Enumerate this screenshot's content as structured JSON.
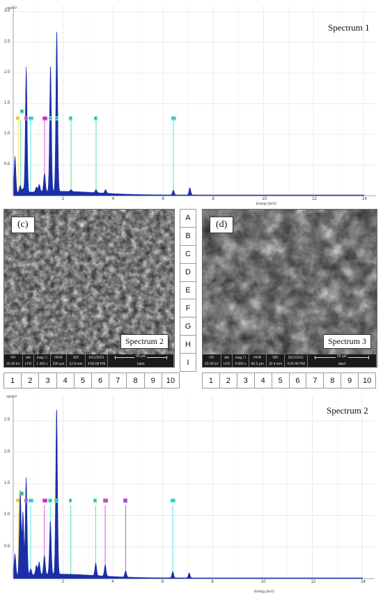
{
  "chart_data": [
    {
      "type": "line",
      "title": "Spectrum 1",
      "ylabel": "cps/eV",
      "xlabel": "Energy [keV]",
      "xlim": [
        0,
        14.5
      ],
      "ylim": [
        0,
        3.1
      ],
      "xticks": [
        2,
        4,
        6,
        8,
        10,
        12,
        14
      ],
      "yticks": [
        0.5,
        1.0,
        1.5,
        2.0,
        2.5,
        3.0
      ],
      "ytick_labels": [
        "0.5",
        "1.0",
        "1.5",
        "2.0",
        "2.5",
        "3.0"
      ],
      "grid": true,
      "peaks": [
        {
          "x": 0.07,
          "y": 0.6
        },
        {
          "x": 0.28,
          "y": 0.12
        },
        {
          "x": 0.39,
          "y": 0.06
        },
        {
          "x": 0.52,
          "y": 2.05
        },
        {
          "x": 0.93,
          "y": 0.08
        },
        {
          "x": 1.04,
          "y": 0.12
        },
        {
          "x": 1.25,
          "y": 0.3
        },
        {
          "x": 1.49,
          "y": 2.08
        },
        {
          "x": 1.74,
          "y": 2.65
        },
        {
          "x": 2.31,
          "y": 0.03
        },
        {
          "x": 3.31,
          "y": 0.05
        },
        {
          "x": 3.69,
          "y": 0.06
        },
        {
          "x": 6.4,
          "y": 0.08
        },
        {
          "x": 7.06,
          "y": 0.12
        }
      ],
      "labels": [
        {
          "text": "C",
          "x": 0.2,
          "color": "#f7e65a"
        },
        {
          "text": "N",
          "x": 0.3,
          "color": "#5ae0a8"
        },
        {
          "text": "O",
          "x": 0.52,
          "color": "#e85ae8"
        },
        {
          "text": "Fe",
          "x": 0.7,
          "color": "#5ae8e8"
        },
        {
          "text": "Mg",
          "x": 1.25,
          "color": "#e85ae8"
        },
        {
          "text": "Al",
          "x": 1.49,
          "color": "#5ae8e8"
        },
        {
          "text": "Si",
          "x": 1.74,
          "color": "#5ae8a0"
        },
        {
          "text": "S",
          "x": 2.31,
          "color": "#5ae8a0"
        },
        {
          "text": "K",
          "x": 3.31,
          "color": "#5ae8a0"
        },
        {
          "text": "Fe",
          "x": 6.4,
          "color": "#5ae8e8"
        }
      ]
    },
    {
      "type": "line",
      "title": "Spectrum 2",
      "ylabel": "cps/eV",
      "xlabel": "Energy [keV]",
      "xlim": [
        0,
        14.5
      ],
      "ylim": [
        0,
        2.9
      ],
      "xticks": [
        2,
        4,
        6,
        8,
        10,
        12,
        14
      ],
      "yticks": [
        0.5,
        1.0,
        1.5,
        2.0,
        2.5
      ],
      "ytick_labels": [
        "0.5",
        "1.0",
        "1.5",
        "2.0",
        "2.5"
      ],
      "grid": true,
      "peaks": [
        {
          "x": 0.07,
          "y": 0.35
        },
        {
          "x": 0.28,
          "y": 1.35
        },
        {
          "x": 0.39,
          "y": 1.0
        },
        {
          "x": 0.52,
          "y": 1.55
        },
        {
          "x": 0.7,
          "y": 0.1
        },
        {
          "x": 0.93,
          "y": 0.15
        },
        {
          "x": 1.04,
          "y": 0.2
        },
        {
          "x": 1.25,
          "y": 0.3
        },
        {
          "x": 1.49,
          "y": 0.85
        },
        {
          "x": 1.74,
          "y": 2.65
        },
        {
          "x": 3.31,
          "y": 0.2
        },
        {
          "x": 3.69,
          "y": 0.18
        },
        {
          "x": 4.51,
          "y": 0.1
        },
        {
          "x": 6.4,
          "y": 0.1
        },
        {
          "x": 7.06,
          "y": 0.08
        }
      ],
      "labels": [
        {
          "text": "C",
          "x": 0.2,
          "color": "#f7e65a"
        },
        {
          "text": "N",
          "x": 0.3,
          "color": "#5ae0a8"
        },
        {
          "text": "O",
          "x": 0.52,
          "color": "#e85ae8"
        },
        {
          "text": "Fe",
          "x": 0.7,
          "color": "#5ae8e8"
        },
        {
          "text": "Mg",
          "x": 1.25,
          "color": "#e85ae8"
        },
        {
          "text": "Al",
          "x": 1.49,
          "color": "#5ae8e8"
        },
        {
          "text": "Si",
          "x": 1.74,
          "color": "#5ae8a0"
        },
        {
          "text": "S",
          "x": 2.31,
          "color": "#5ae8a0"
        },
        {
          "text": "K",
          "x": 3.31,
          "color": "#5ae8a0"
        },
        {
          "text": "Ca",
          "x": 3.69,
          "color": "#e85ae8"
        },
        {
          "text": "Ti",
          "x": 4.51,
          "color": "#c05ae8"
        },
        {
          "text": "Fe",
          "x": 6.4,
          "color": "#5ae8e8"
        }
      ]
    }
  ],
  "panels": {
    "c": {
      "letter": "(c)",
      "spectrum_label": "Spectrum 2",
      "databar": {
        "cols": [
          {
            "head": "HV",
            "val": "20.00 kV"
          },
          {
            "head": "det",
            "val": "LFD"
          },
          {
            "head": "mag ☐",
            "val": "1 300 x"
          },
          {
            "head": "HFW",
            "val": "230 µm"
          },
          {
            "head": "WD",
            "val": "12.8 mm"
          },
          {
            "head": "9/21/2021",
            "val": "4:56:58 PM"
          }
        ],
        "scale": "50 µm",
        "label": "label"
      }
    },
    "d": {
      "letter": "(d)",
      "spectrum_label": "Spectrum 3",
      "databar": {
        "cols": [
          {
            "head": "HV",
            "val": "20.00 kV"
          },
          {
            "head": "det",
            "val": "LFD"
          },
          {
            "head": "mag ☐",
            "val": "4 500 x"
          },
          {
            "head": "HFW",
            "val": "66.3 µm"
          },
          {
            "head": "WD",
            "val": "10.4 mm"
          },
          {
            "head": "9/21/2021",
            "val": "4:25:46 PM"
          }
        ],
        "scale": "20 µm",
        "label": "label"
      }
    }
  },
  "grid_letters": [
    "A",
    "B",
    "C",
    "D",
    "E",
    "F",
    "G",
    "H",
    "I"
  ],
  "grid_numbers_left": [
    "1",
    "2",
    "3",
    "4",
    "5",
    "6",
    "7",
    "8",
    "9",
    "10"
  ],
  "grid_numbers_right": [
    "1",
    "2",
    "3",
    "4",
    "5",
    "6",
    "7",
    "8",
    "9",
    "10"
  ],
  "colors": {
    "spectrum_fill": "#1a2fa8",
    "grid_line": "#dcdcdc",
    "axis_color": "#888888"
  }
}
